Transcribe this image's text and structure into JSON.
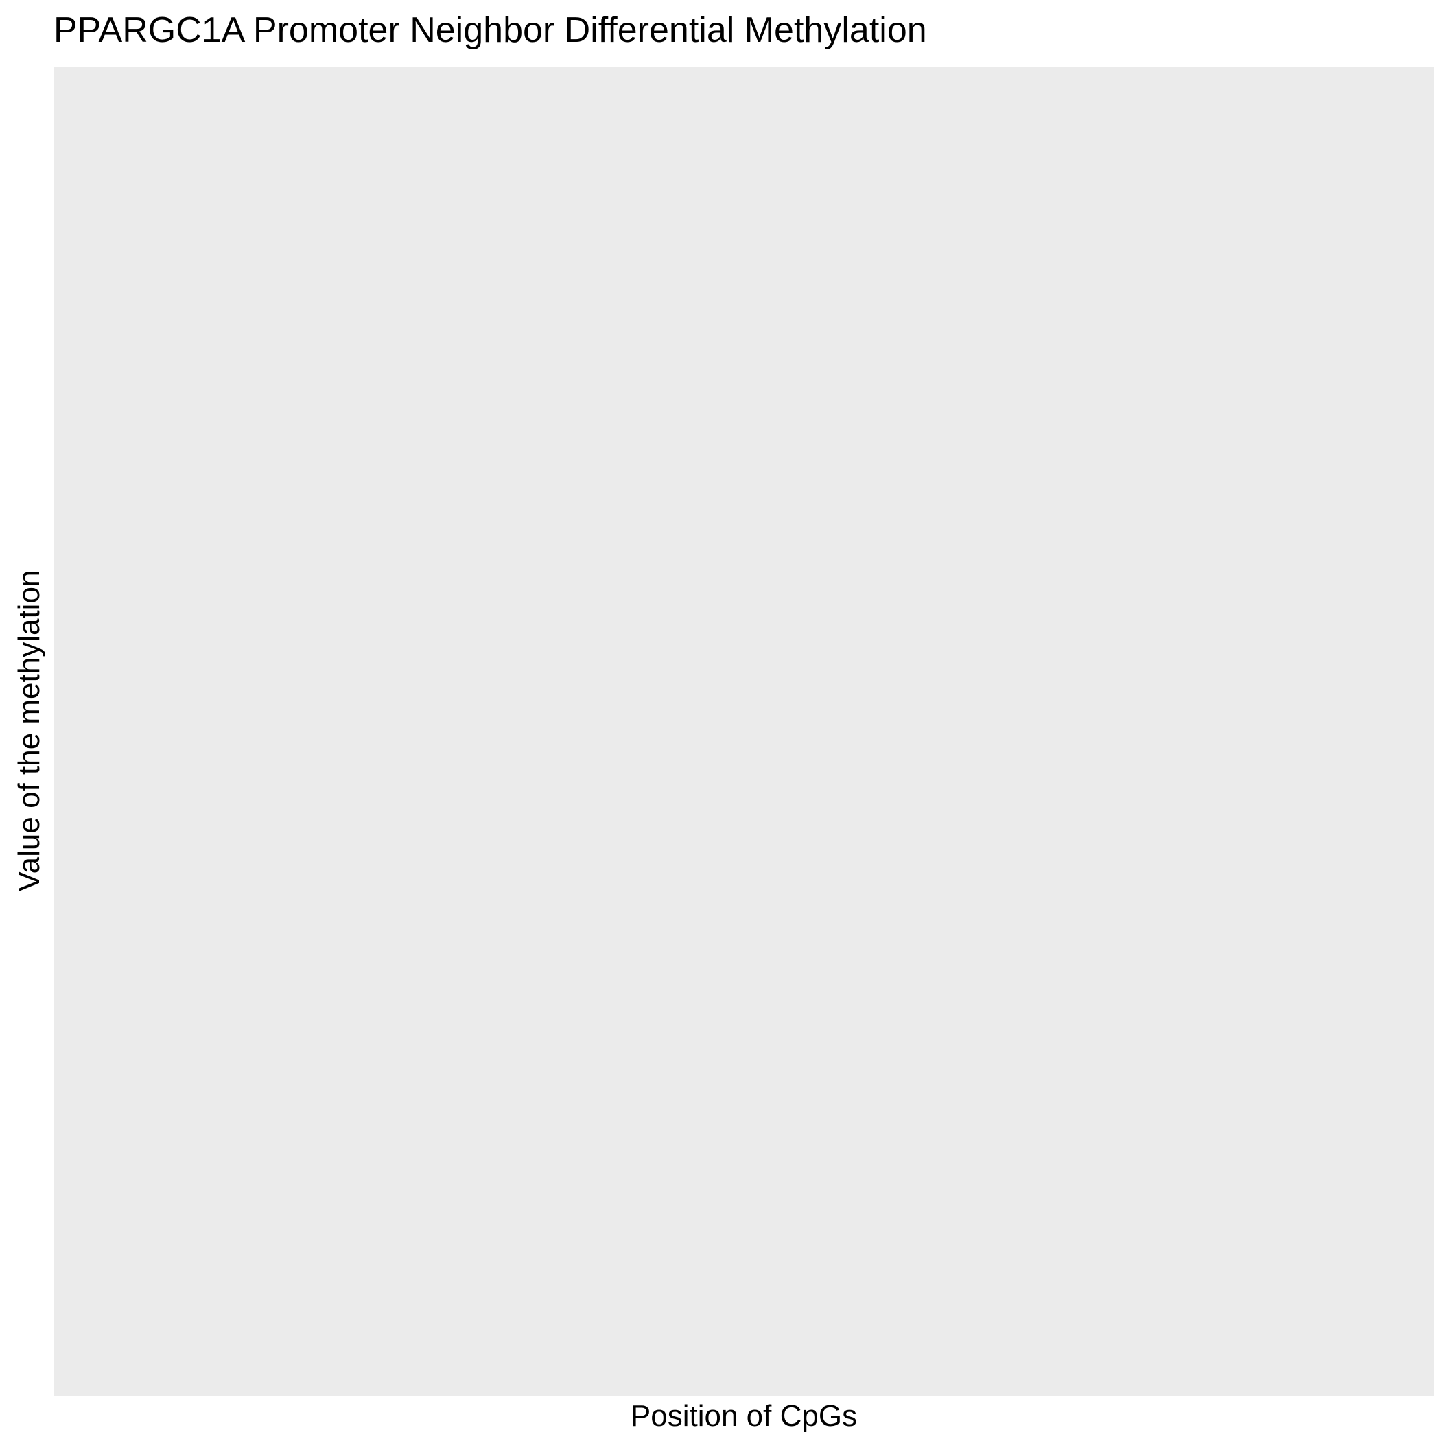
{
  "chart_data": {
    "type": "scatter",
    "title": "PPARGC1A Promoter Neighbor Differential Methylation",
    "xlabel": "Position of CpGs",
    "ylabel": "Value of the methylation",
    "series": [],
    "grid": false,
    "legend": "none",
    "panel_color": "#EBEBEB"
  }
}
